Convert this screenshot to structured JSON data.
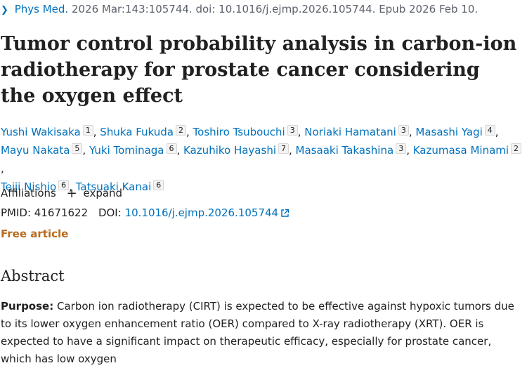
{
  "citation": {
    "journal": "Phys Med.",
    "details": "2026 Mar:143:105744. doi: 10.1016/j.ejmp.2026.105744. Epub 2026 Feb 10."
  },
  "title": "Tumor control probability analysis in carbon-ion radiotherapy for prostate cancer considering the oxygen effect",
  "authors": [
    {
      "name": "Yushi Wakisaka",
      "aff": "1"
    },
    {
      "name": "Shuka Fukuda",
      "aff": "2"
    },
    {
      "name": "Toshiro Tsubouchi",
      "aff": "3"
    },
    {
      "name": "Noriaki Hamatani",
      "aff": "3"
    },
    {
      "name": "Masashi Yagi",
      "aff": "4"
    },
    {
      "name": "Mayu Nakata",
      "aff": "5"
    },
    {
      "name": "Yuki Tominaga",
      "aff": "6"
    },
    {
      "name": "Kazuhiko Hayashi",
      "aff": "7"
    },
    {
      "name": "Masaaki Takashina",
      "aff": "3"
    },
    {
      "name": "Kazumasa Minami",
      "aff": "2"
    },
    {
      "name": "Teiji Nishio",
      "aff": "6"
    },
    {
      "name": "Tatsuaki Kanai",
      "aff": "6"
    }
  ],
  "affiliations": {
    "label": "Affiliations",
    "expand": "expand"
  },
  "ids": {
    "pmid_label": "PMID:",
    "pmid": "41671622",
    "doi_label": "DOI:",
    "doi": "10.1016/j.ejmp.2026.105744"
  },
  "free_article": "Free article",
  "abstract": {
    "heading": "Abstract",
    "purpose_label": "Purpose:",
    "purpose_text": "Carbon ion radiotherapy (CIRT) is expected to be effective against hypoxic tumors due to its lower oxygen enhancement ratio (OER) compared to X-ray radiotherapy (XRT). OER is expected to have a significant impact on therapeutic efficacy, especially for prostate cancer, which has low oxygen"
  },
  "colors": {
    "link": "#0071bc",
    "free": "#b86b1e",
    "text": "#212121"
  }
}
